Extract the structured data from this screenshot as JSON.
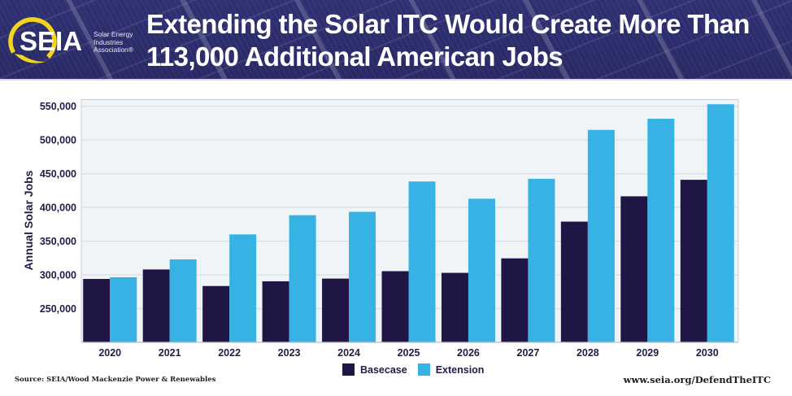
{
  "header": {
    "logo": {
      "wordmark": "SEIA",
      "org_line1": "Solar Energy",
      "org_line2": "Industries",
      "org_line3": "Association®"
    },
    "title_line1": "Extending the Solar ITC Would Create More Than",
    "title_line2": "113,000 Additional American Jobs"
  },
  "footer": {
    "source": "Source: SEIA/Wood Mackenzie Power & Renewables",
    "url": "www.seia.org/DefendTheITC"
  },
  "colors": {
    "header_bg": "#2b2c6a",
    "basecase": "#1f1646",
    "extension": "#37b2e4",
    "plot_bg": "#eff4f7",
    "gridline": "#d9dde3",
    "axis_text": "#221c46",
    "logo_yellow": "#f2d41e"
  },
  "chart_data": {
    "type": "bar",
    "title": "Extending the Solar ITC Would Create More Than 113,000 Additional American Jobs",
    "xlabel": "",
    "ylabel": "Annual Solar Jobs",
    "categories": [
      "2020",
      "2021",
      "2022",
      "2023",
      "2024",
      "2025",
      "2026",
      "2027",
      "2028",
      "2029",
      "2030"
    ],
    "series": [
      {
        "name": "Basecase",
        "color": "#1f1646",
        "values": [
          294000,
          308000,
          283500,
          290500,
          294500,
          305500,
          303000,
          324500,
          379000,
          416500,
          441000
        ]
      },
      {
        "name": "Extension",
        "color": "#37b2e4",
        "values": [
          296500,
          323000,
          360000,
          388500,
          393500,
          438500,
          413000,
          442500,
          515000,
          531500,
          553000
        ]
      }
    ],
    "ylim": [
      200000,
      560000
    ],
    "yticks": [
      250000,
      300000,
      350000,
      400000,
      450000,
      500000,
      550000
    ],
    "ytick_labels": [
      "250,000",
      "300,000",
      "350,000",
      "400,000",
      "450,000",
      "500,000",
      "550,000"
    ],
    "grid": true,
    "legend": "bottom-center"
  }
}
